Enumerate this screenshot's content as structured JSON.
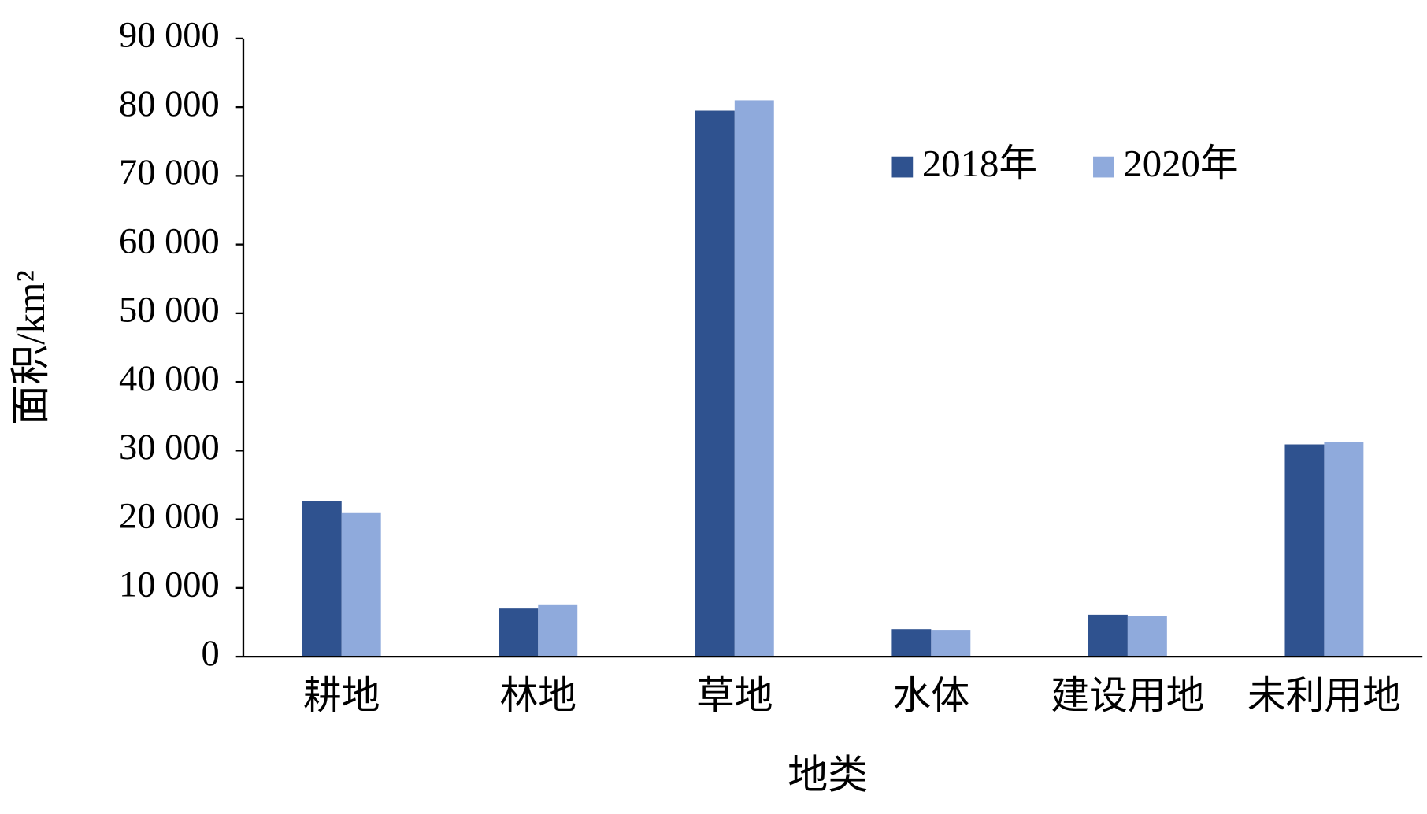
{
  "chart_data": {
    "type": "bar",
    "y_label": "面积/km²",
    "x_label": "地类",
    "categories": [
      "耕地",
      "林地",
      "草地",
      "水体",
      "建设用地",
      "未利用地"
    ],
    "series": [
      {
        "name": "2018年",
        "color": "#2f528f",
        "values": [
          22600,
          7100,
          79500,
          4000,
          6100,
          30900
        ]
      },
      {
        "name": "2020年",
        "color": "#8faadc",
        "values": [
          20900,
          7600,
          81000,
          3900,
          5900,
          31300
        ]
      }
    ],
    "ylim": [
      0,
      90000
    ],
    "yticks": [
      0,
      {
        "value": 10000,
        "label": "10 000"
      },
      {
        "value": 20000,
        "label": "20 000"
      },
      {
        "value": 30000,
        "label": "30 000"
      },
      {
        "value": 40000,
        "label": "40 000"
      },
      {
        "value": 50000,
        "label": "50 000"
      },
      {
        "value": 60000,
        "label": "60 000"
      },
      {
        "value": 70000,
        "label": "70 000"
      },
      {
        "value": 80000,
        "label": "80 000"
      },
      {
        "value": 90000,
        "label": "90 000"
      }
    ],
    "grid": false,
    "legend": "upper right"
  }
}
